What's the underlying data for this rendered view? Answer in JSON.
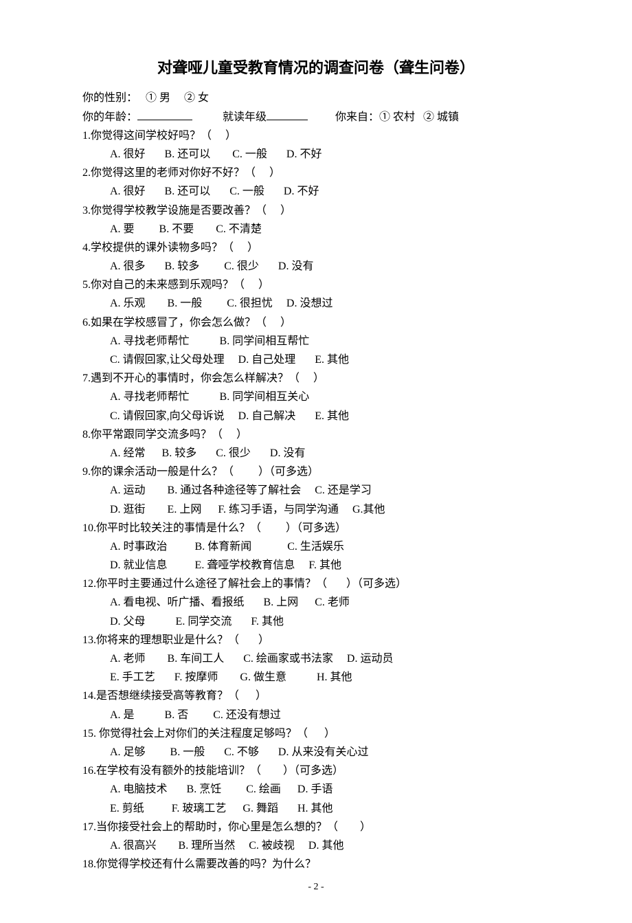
{
  "title": "对聋哑儿童受教育情况的调查问卷（聋生问卷）",
  "demo": {
    "gender": "你的性别：   ① 男     ② 女",
    "age_label": "你的年龄：",
    "grade_label": "就读年级",
    "from_label": "你来自：① 农村   ② 城镇"
  },
  "q1": {
    "text": "1.你觉得这间学校好吗？（     ）",
    "opts": "A. 很好       B. 还可以        C. 一般       D. 不好"
  },
  "q2": {
    "text": "2.你觉得这里的老师对你好不好？（     ）",
    "opts": "A. 很好       B. 还可以       C. 一般       D. 不好"
  },
  "q3": {
    "text": "3.你觉得学校教学设施是否要改善？（     ）",
    "opts": "A. 要         B. 不要        C. 不清楚"
  },
  "q4": {
    "text": "4.学校提供的课外读物多吗？（     ）",
    "opts": "A. 很多       B. 较多         C. 很少       D. 没有"
  },
  "q5": {
    "text": "5.你对自己的未来感到乐观吗？（     ）",
    "opts": "A. 乐观        B. 一般         C. 很担忧     D. 没想过"
  },
  "q6": {
    "text": "6.如果在学校感冒了，你会怎么做？（     ）",
    "opts1": "A. 寻找老师帮忙           B. 同学间相互帮忙",
    "opts2": "C. 请假回家,让父母处理     D. 自己处理       E. 其他"
  },
  "q7": {
    "text": "7.遇到不开心的事情时，你会怎么样解决？（     ）",
    "opts1": "A. 寻找老师帮忙           B. 同学间相互关心",
    "opts2": "C. 请假回家,向父母诉说     D. 自己解决       E. 其他"
  },
  "q8": {
    "text": "8.你平常跟同学交流多吗？（     ）",
    "opts": "A. 经常      B. 较多       C. 很少       D. 没有"
  },
  "q9": {
    "text": "9.你的课余活动一般是什么？（         ）（可多选）",
    "opts1": "A. 运动        B. 通过各种途径等了解社会     C. 还是学习",
    "opts2": "D. 逛街        E. 上网      F. 练习手语，与同学沟通     G.其他"
  },
  "q10": {
    "text": "10.你平时比较关注的事情是什么？（         ）（可多选）",
    "opts1": "A. 时事政治          B. 体育新闻             C. 生活娱乐",
    "opts2": "D. 就业信息          E. 聋哑学校教育信息     F. 其他"
  },
  "q12": {
    "text": "12.你平时主要通过什么途径了解社会上的事情？（       ）（可多选）",
    "opts1": "A. 看电视、听广播、看报纸       B. 上网      C. 老师",
    "opts2": "D. 父母           E. 同学交流       F. 其他"
  },
  "q13": {
    "text": "13.你将来的理想职业是什么？（       ）",
    "opts1": "A. 老师        B. 车间工人       C. 绘画家或书法家     D. 运动员",
    "opts2": "E. 手工艺       F. 按摩师        G. 做生意           H. 其他"
  },
  "q14": {
    "text": "14.是否想继续接受高等教育？（      ）",
    "opts": "A. 是           B. 否         C. 还没有想过"
  },
  "q15": {
    "text": "15. 你觉得社会上对你们的关注程度足够吗？（      ）",
    "opts": "A. 足够         B. 一般       C. 不够       D. 从来没有关心过"
  },
  "q16": {
    "text": "16.在学校有没有额外的技能培训？（        ）（可多选）",
    "opts1": "A. 电脑技术       B. 烹饪         C. 绘画      D. 手语",
    "opts2": "E. 剪纸          F. 玻璃工艺      G. 舞蹈       H. 其他"
  },
  "q17": {
    "text": "17.当你接受社会上的帮助时，你心里是怎么想的？（        ）",
    "opts": "A. 很高兴        B. 理所当然     C. 被歧视     D. 其他"
  },
  "q18": {
    "text": "18.你觉得学校还有什么需要改善的吗？为什么？"
  },
  "pagenum": "- 2 -"
}
